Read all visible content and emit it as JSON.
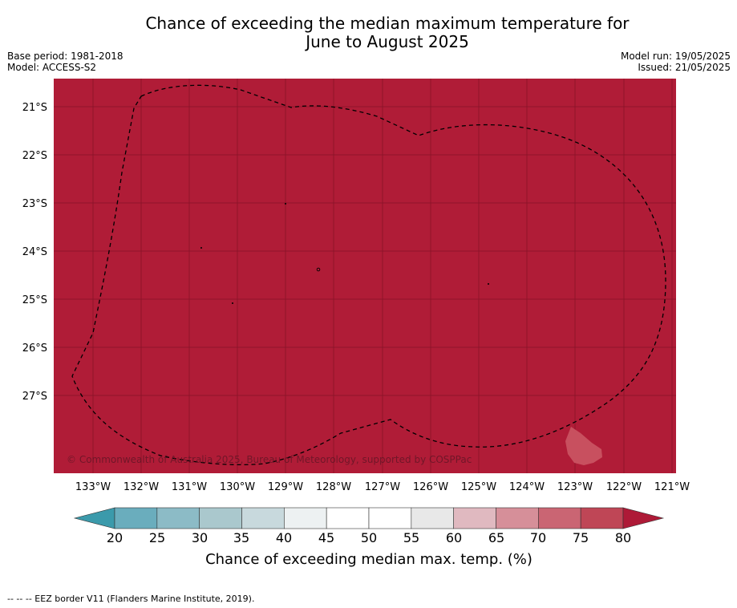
{
  "title": {
    "line1": "Chance of exceeding the median maximum temperature for",
    "line2": "June to August 2025"
  },
  "meta_left": {
    "base_period": "Base period: 1981-2018",
    "model": "Model: ACCESS-S2"
  },
  "meta_right": {
    "model_run": "Model run: 19/05/2025",
    "issued": "Issued: 21/05/2025"
  },
  "map": {
    "fill_color": "#b01c37",
    "grid_color": "#7a1022",
    "copyright": "© Commonwealth of Australia 2025, Bureau of Meteorology, supported by COSPPac",
    "lat_labels": [
      "21°S",
      "22°S",
      "23°S",
      "24°S",
      "25°S",
      "26°S",
      "27°S"
    ],
    "lon_labels": [
      "133°W",
      "132°W",
      "131°W",
      "130°W",
      "129°W",
      "128°W",
      "127°W",
      "126°W",
      "125°W",
      "124°W",
      "123°W",
      "122°W",
      "121°W"
    ],
    "lighter_patch_color": "#c8505f"
  },
  "colorbar": {
    "ticks": [
      "20",
      "25",
      "30",
      "35",
      "40",
      "45",
      "50",
      "55",
      "60",
      "65",
      "70",
      "75",
      "80"
    ],
    "colors": [
      "#3b9aab",
      "#6aadbd",
      "#8cbbc6",
      "#aac8cd",
      "#c8d9dd",
      "#edf1f2",
      "#ffffff",
      "#ffffff",
      "#e8e8e8",
      "#e0b9c0",
      "#d68f99",
      "#ca6573",
      "#bf4656",
      "#ae1a37"
    ],
    "label": "Chance of exceeding median max. temp. (%)"
  },
  "footer": "--  --  -- EEZ border V11 (Flanders Marine Institute, 2019)."
}
